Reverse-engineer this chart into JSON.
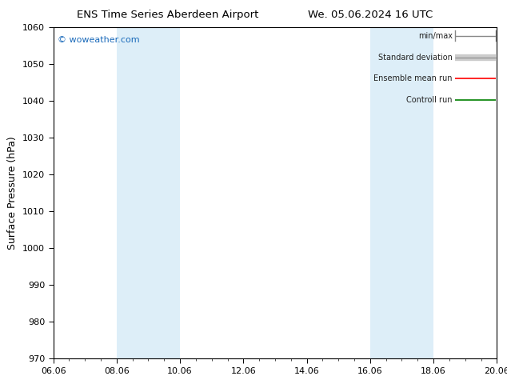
{
  "title_left": "ENS Time Series Aberdeen Airport",
  "title_right": "We. 05.06.2024 16 UTC",
  "ylabel": "Surface Pressure (hPa)",
  "ylim": [
    970,
    1060
  ],
  "yticks": [
    970,
    980,
    990,
    1000,
    1010,
    1020,
    1030,
    1040,
    1050,
    1060
  ],
  "xlim": [
    0,
    14
  ],
  "xtick_labels": [
    "06.06",
    "08.06",
    "10.06",
    "12.06",
    "14.06",
    "16.06",
    "18.06",
    "20.06"
  ],
  "xtick_positions": [
    0,
    2,
    4,
    6,
    8,
    10,
    12,
    14
  ],
  "watermark": "© woweather.com",
  "legend_items": [
    {
      "label": "min/max",
      "color": "#aaaaaa",
      "lw": 1.2
    },
    {
      "label": "Standard deviation",
      "color": "#cccccc",
      "lw": 5
    },
    {
      "label": "Ensemble mean run",
      "color": "red",
      "lw": 1.2
    },
    {
      "label": "Controll run",
      "color": "green",
      "lw": 1.2
    }
  ],
  "blue_bands": [
    {
      "x_start": 2,
      "x_end": 4
    },
    {
      "x_start": 10,
      "x_end": 12
    }
  ],
  "band_color": "#ddeef8",
  "background_color": "#ffffff",
  "plot_bg_color": "#ffffff"
}
